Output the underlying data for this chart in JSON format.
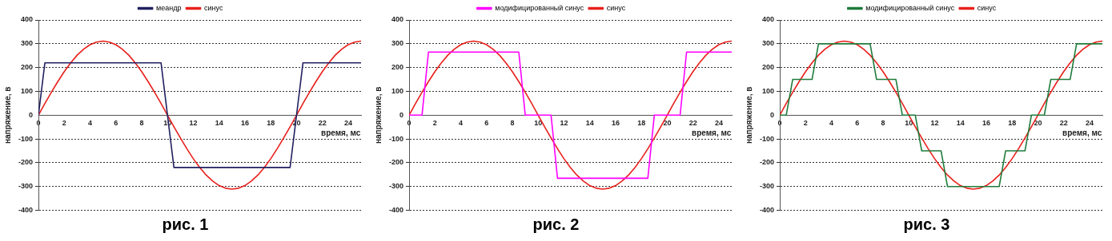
{
  "chart_data": [
    {
      "type": "line",
      "xlabel": "время, мс",
      "ylabel": "напряжение, в",
      "annotations": [
        "рис. 1"
      ],
      "xlim": [
        0,
        25
      ],
      "ylim": [
        -400,
        400
      ],
      "xticks": [
        0,
        2,
        4,
        6,
        8,
        10,
        12,
        14,
        16,
        18,
        20,
        22,
        24
      ],
      "yticks": [
        -400,
        -300,
        -200,
        -100,
        0,
        100,
        200,
        300,
        400
      ],
      "grid": "y",
      "legend": "top",
      "marker": "none",
      "line_style": "solid",
      "series": [
        {
          "name": "меандр",
          "color": "#202060",
          "x": [
            0,
            0.5,
            9.5,
            10.5,
            19.5,
            20.5,
            25
          ],
          "values": [
            0,
            220,
            220,
            -220,
            -220,
            220,
            220
          ]
        },
        {
          "name": "синус",
          "color": "#e8201c",
          "x": [
            0,
            0.5,
            1,
            1.5,
            2,
            2.5,
            3,
            3.5,
            4,
            4.5,
            5,
            5.5,
            6,
            6.5,
            7,
            7.5,
            8,
            8.5,
            9,
            9.5,
            10,
            10.5,
            11,
            11.5,
            12,
            12.5,
            13,
            13.5,
            14,
            14.5,
            15,
            15.5,
            16,
            16.5,
            17,
            17.5,
            18,
            18.5,
            19,
            19.5,
            20,
            20.5,
            21,
            21.5,
            22,
            22.5,
            23,
            23.5,
            24,
            24.5,
            25
          ],
          "values": [
            0,
            49,
            96,
            141,
            183,
            220,
            252,
            277,
            296,
            307,
            311,
            307,
            296,
            277,
            252,
            220,
            183,
            141,
            96,
            49,
            0,
            -49,
            -96,
            -141,
            -183,
            -220,
            -252,
            -277,
            -296,
            -307,
            -311,
            -307,
            -296,
            -277,
            -252,
            -220,
            -183,
            -141,
            -96,
            -49,
            0,
            49,
            96,
            141,
            183,
            220,
            252,
            277,
            296,
            307,
            311
          ]
        }
      ]
    },
    {
      "type": "line",
      "xlabel": "время, мс",
      "ylabel": "напряжение, в",
      "annotations": [
        "рис. 2"
      ],
      "xlim": [
        0,
        25
      ],
      "ylim": [
        -400,
        400
      ],
      "xticks": [
        0,
        2,
        4,
        6,
        8,
        10,
        12,
        14,
        16,
        18,
        20,
        22,
        24
      ],
      "yticks": [
        -400,
        -300,
        -200,
        -100,
        0,
        100,
        200,
        300,
        400
      ],
      "grid": "y",
      "legend": "top",
      "marker": "none",
      "line_style": "solid",
      "series": [
        {
          "name": "модифицированный синус",
          "color": "#ff00ff",
          "x": [
            0,
            1,
            1.5,
            8.5,
            9,
            11,
            11.5,
            18.5,
            19,
            21,
            21.5,
            25
          ],
          "values": [
            0,
            0,
            265,
            265,
            0,
            0,
            -265,
            -265,
            0,
            0,
            265,
            265
          ]
        },
        {
          "name": "синус",
          "color": "#e8201c",
          "x": [
            0,
            0.5,
            1,
            1.5,
            2,
            2.5,
            3,
            3.5,
            4,
            4.5,
            5,
            5.5,
            6,
            6.5,
            7,
            7.5,
            8,
            8.5,
            9,
            9.5,
            10,
            10.5,
            11,
            11.5,
            12,
            12.5,
            13,
            13.5,
            14,
            14.5,
            15,
            15.5,
            16,
            16.5,
            17,
            17.5,
            18,
            18.5,
            19,
            19.5,
            20,
            20.5,
            21,
            21.5,
            22,
            22.5,
            23,
            23.5,
            24,
            24.5,
            25
          ],
          "values": [
            0,
            49,
            96,
            141,
            183,
            220,
            252,
            277,
            296,
            307,
            311,
            307,
            296,
            277,
            252,
            220,
            183,
            141,
            96,
            49,
            0,
            -49,
            -96,
            -141,
            -183,
            -220,
            -252,
            -277,
            -296,
            -307,
            -311,
            -307,
            -296,
            -277,
            -252,
            -220,
            -183,
            -141,
            -96,
            -49,
            0,
            49,
            96,
            141,
            183,
            220,
            252,
            277,
            296,
            307,
            311
          ]
        }
      ]
    },
    {
      "type": "line",
      "xlabel": "время, мс",
      "ylabel": "напряжение, в",
      "annotations": [
        "рис. 3"
      ],
      "xlim": [
        0,
        25
      ],
      "ylim": [
        -400,
        400
      ],
      "xticks": [
        0,
        2,
        4,
        6,
        8,
        10,
        12,
        14,
        16,
        18,
        20,
        22,
        24
      ],
      "yticks": [
        -400,
        -300,
        -200,
        -100,
        0,
        100,
        200,
        300,
        400
      ],
      "grid": "y",
      "legend": "top",
      "marker": "none",
      "line_style": "solid",
      "series": [
        {
          "name": "модифицированный синус",
          "color": "#1e7b3a",
          "x": [
            0,
            0.5,
            1,
            2.5,
            3,
            7,
            7.5,
            9,
            9.5,
            10.5,
            11,
            12.5,
            13,
            17,
            17.5,
            19,
            19.5,
            20.5,
            21,
            22.5,
            23,
            25
          ],
          "values": [
            0,
            0,
            150,
            150,
            300,
            300,
            150,
            150,
            0,
            0,
            -150,
            -150,
            -300,
            -300,
            -150,
            -150,
            0,
            0,
            150,
            150,
            300,
            300
          ]
        },
        {
          "name": "синус",
          "color": "#e8201c",
          "x": [
            0,
            0.5,
            1,
            1.5,
            2,
            2.5,
            3,
            3.5,
            4,
            4.5,
            5,
            5.5,
            6,
            6.5,
            7,
            7.5,
            8,
            8.5,
            9,
            9.5,
            10,
            10.5,
            11,
            11.5,
            12,
            12.5,
            13,
            13.5,
            14,
            14.5,
            15,
            15.5,
            16,
            16.5,
            17,
            17.5,
            18,
            18.5,
            19,
            19.5,
            20,
            20.5,
            21,
            21.5,
            22,
            22.5,
            23,
            23.5,
            24,
            24.5,
            25
          ],
          "values": [
            0,
            49,
            96,
            141,
            183,
            220,
            252,
            277,
            296,
            307,
            311,
            307,
            296,
            277,
            252,
            220,
            183,
            141,
            96,
            49,
            0,
            -49,
            -96,
            -141,
            -183,
            -220,
            -252,
            -277,
            -296,
            -307,
            -311,
            -307,
            -296,
            -277,
            -252,
            -220,
            -183,
            -141,
            -96,
            -49,
            0,
            49,
            96,
            141,
            183,
            220,
            252,
            277,
            296,
            307,
            311
          ]
        }
      ]
    }
  ]
}
